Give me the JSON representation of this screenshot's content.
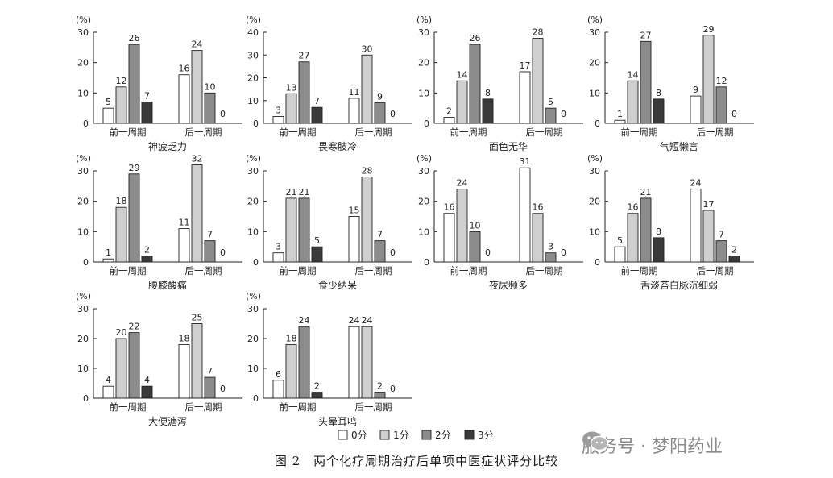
{
  "figure_caption": "图 2　两个化疗周期治疗后单项中医症状评分比较",
  "watermark": {
    "text": "服务号 · 梦阳药业",
    "icon": "wechat-icon"
  },
  "colors": {
    "score0": "#ffffff",
    "score1": "#cfcfcf",
    "score2": "#8c8c8c",
    "score3": "#3a3a3a",
    "axis": "#222222"
  },
  "legend": {
    "position": "bottom",
    "items": [
      "0分",
      "1分",
      "2分",
      "3分"
    ]
  },
  "chart_data": [
    {
      "type": "bar",
      "title": "神疲乏力",
      "ylabel": "(%)",
      "ylim": [
        0,
        30
      ],
      "yticks": [
        0,
        10,
        20,
        30
      ],
      "categories": [
        "前一周期",
        "后一周期"
      ],
      "series": [
        {
          "name": "0分",
          "values": [
            5,
            16
          ]
        },
        {
          "name": "1分",
          "values": [
            12,
            24
          ]
        },
        {
          "name": "2分",
          "values": [
            26,
            10
          ]
        },
        {
          "name": "3分",
          "values": [
            7,
            0
          ]
        }
      ]
    },
    {
      "type": "bar",
      "title": "畏寒肢冷",
      "ylabel": "(%)",
      "ylim": [
        0,
        40
      ],
      "yticks": [
        0,
        10,
        20,
        30,
        40
      ],
      "categories": [
        "前一周期",
        "后一周期"
      ],
      "series": [
        {
          "name": "0分",
          "values": [
            3,
            11
          ]
        },
        {
          "name": "1分",
          "values": [
            13,
            30
          ]
        },
        {
          "name": "2分",
          "values": [
            27,
            9
          ]
        },
        {
          "name": "3分",
          "values": [
            7,
            0
          ]
        }
      ]
    },
    {
      "type": "bar",
      "title": "面色无华",
      "ylabel": "(%)",
      "ylim": [
        0,
        30
      ],
      "yticks": [
        0,
        10,
        20,
        30
      ],
      "categories": [
        "前一周期",
        "后一周期"
      ],
      "series": [
        {
          "name": "0分",
          "values": [
            2,
            17
          ]
        },
        {
          "name": "1分",
          "values": [
            14,
            28
          ]
        },
        {
          "name": "2分",
          "values": [
            26,
            5
          ]
        },
        {
          "name": "3分",
          "values": [
            8,
            0
          ]
        }
      ]
    },
    {
      "type": "bar",
      "title": "气短懒言",
      "ylabel": "(%)",
      "ylim": [
        0,
        30
      ],
      "yticks": [
        0,
        10,
        20,
        30
      ],
      "categories": [
        "前一周期",
        "后一周期"
      ],
      "series": [
        {
          "name": "0分",
          "values": [
            1,
            9
          ]
        },
        {
          "name": "1分",
          "values": [
            14,
            29
          ]
        },
        {
          "name": "2分",
          "values": [
            27,
            12
          ]
        },
        {
          "name": "3分",
          "values": [
            8,
            0
          ]
        }
      ]
    },
    {
      "type": "bar",
      "title": "腰膝酸痛",
      "ylabel": "(%)",
      "ylim": [
        0,
        30
      ],
      "yticks": [
        0,
        10,
        20,
        30
      ],
      "categories": [
        "前一周期",
        "后一周期"
      ],
      "series": [
        {
          "name": "0分",
          "values": [
            1,
            11
          ]
        },
        {
          "name": "1分",
          "values": [
            18,
            32
          ]
        },
        {
          "name": "2分",
          "values": [
            29,
            7
          ]
        },
        {
          "name": "3分",
          "values": [
            2,
            0
          ]
        }
      ]
    },
    {
      "type": "bar",
      "title": "食少纳呆",
      "ylabel": "(%)",
      "ylim": [
        0,
        30
      ],
      "yticks": [
        0,
        10,
        20,
        30
      ],
      "categories": [
        "前一周期",
        "后一周期"
      ],
      "series": [
        {
          "name": "0分",
          "values": [
            3,
            15
          ]
        },
        {
          "name": "1分",
          "values": [
            21,
            28
          ]
        },
        {
          "name": "2分",
          "values": [
            21,
            7
          ]
        },
        {
          "name": "3分",
          "values": [
            5,
            0
          ]
        }
      ]
    },
    {
      "type": "bar",
      "title": "夜尿频多",
      "ylabel": "(%)",
      "ylim": [
        0,
        30
      ],
      "yticks": [
        0,
        10,
        20,
        30
      ],
      "categories": [
        "前一周期",
        "后一周期"
      ],
      "series": [
        {
          "name": "0分",
          "values": [
            16,
            31
          ]
        },
        {
          "name": "1分",
          "values": [
            24,
            16
          ]
        },
        {
          "name": "2分",
          "values": [
            10,
            3
          ]
        },
        {
          "name": "3分",
          "values": [
            0,
            0
          ]
        }
      ]
    },
    {
      "type": "bar",
      "title": "舌淡苔白脉沉细弱",
      "ylabel": "(%)",
      "ylim": [
        0,
        30
      ],
      "yticks": [
        0,
        10,
        20,
        30
      ],
      "categories": [
        "前一周期",
        "后一周期"
      ],
      "series": [
        {
          "name": "0分",
          "values": [
            5,
            24
          ]
        },
        {
          "name": "1分",
          "values": [
            16,
            17
          ]
        },
        {
          "name": "2分",
          "values": [
            21,
            7
          ]
        },
        {
          "name": "3分",
          "values": [
            8,
            2
          ]
        }
      ]
    },
    {
      "type": "bar",
      "title": "大便溏泻",
      "ylabel": "(%)",
      "ylim": [
        0,
        30
      ],
      "yticks": [
        0,
        10,
        20,
        30
      ],
      "categories": [
        "前一周期",
        "后一周期"
      ],
      "series": [
        {
          "name": "0分",
          "values": [
            4,
            18
          ]
        },
        {
          "name": "1分",
          "values": [
            20,
            25
          ]
        },
        {
          "name": "2分",
          "values": [
            22,
            7
          ]
        },
        {
          "name": "3分",
          "values": [
            4,
            0
          ]
        }
      ]
    },
    {
      "type": "bar",
      "title": "头晕耳鸣",
      "ylabel": "(%)",
      "ylim": [
        0,
        30
      ],
      "yticks": [
        0,
        10,
        20,
        30
      ],
      "categories": [
        "前一周期",
        "后一周期"
      ],
      "series": [
        {
          "name": "0分",
          "values": [
            6,
            24
          ]
        },
        {
          "name": "1分",
          "values": [
            18,
            24
          ]
        },
        {
          "name": "2分",
          "values": [
            24,
            2
          ]
        },
        {
          "name": "3分",
          "values": [
            2,
            0
          ]
        }
      ]
    }
  ]
}
